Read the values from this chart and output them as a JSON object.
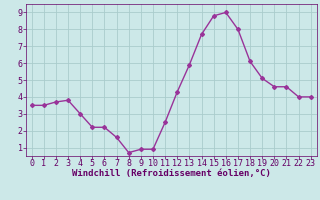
{
  "x": [
    0,
    1,
    2,
    3,
    4,
    5,
    6,
    7,
    8,
    9,
    10,
    11,
    12,
    13,
    14,
    15,
    16,
    17,
    18,
    19,
    20,
    21,
    22,
    23
  ],
  "y": [
    3.5,
    3.5,
    3.7,
    3.8,
    3.0,
    2.2,
    2.2,
    1.6,
    0.7,
    0.9,
    0.9,
    2.5,
    4.3,
    5.9,
    7.7,
    8.8,
    9.0,
    8.0,
    6.1,
    5.1,
    4.6,
    4.6,
    4.0,
    4.0
  ],
  "line_color": "#993399",
  "marker": "D",
  "markersize": 2,
  "linewidth": 1.0,
  "bg_color": "#cce8e8",
  "grid_color": "#aacccc",
  "tick_color": "#660066",
  "label_color": "#660066",
  "xlabel": "Windchill (Refroidissement éolien,°C)",
  "xlim": [
    -0.5,
    23.5
  ],
  "ylim": [
    0.5,
    9.5
  ],
  "yticks": [
    1,
    2,
    3,
    4,
    5,
    6,
    7,
    8,
    9
  ],
  "xticks": [
    0,
    1,
    2,
    3,
    4,
    5,
    6,
    7,
    8,
    9,
    10,
    11,
    12,
    13,
    14,
    15,
    16,
    17,
    18,
    19,
    20,
    21,
    22,
    23
  ],
  "xlabel_fontsize": 6.5,
  "tick_fontsize": 6
}
